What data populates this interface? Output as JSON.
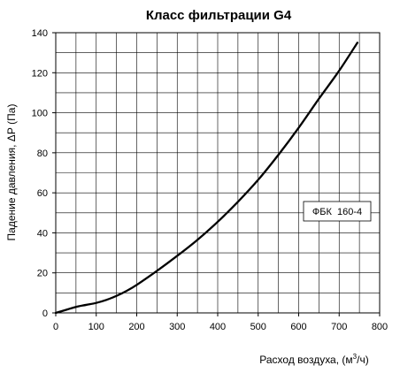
{
  "chart_data": {
    "type": "line",
    "title": "Класс фильтрации G4",
    "xlabel": "Расход воздуха, (м",
    "xlabel_sup": "3",
    "xlabel_tail": "/ч)",
    "ylabel": "Падение давления, ΔР (Па)",
    "xlim": [
      0,
      800
    ],
    "ylim": [
      0,
      140
    ],
    "xticks": [
      0,
      100,
      200,
      300,
      400,
      500,
      600,
      700,
      800
    ],
    "yticks": [
      0,
      20,
      40,
      60,
      80,
      100,
      120,
      140
    ],
    "x_minor_step": 50,
    "y_minor_step": 10,
    "grid": true,
    "legend_position": "right-middle",
    "series": [
      {
        "name": "ФБК  160-4",
        "color": "#000000",
        "x": [
          0,
          25,
          50,
          75,
          100,
          125,
          150,
          175,
          200,
          250,
          300,
          350,
          400,
          450,
          500,
          550,
          600,
          650,
          700,
          745
        ],
        "y": [
          0,
          1.5,
          3,
          4,
          5,
          6.5,
          8.5,
          11,
          14,
          21,
          28.5,
          36.5,
          45.5,
          55.5,
          66.5,
          79,
          92.5,
          107,
          121,
          135
        ]
      }
    ]
  }
}
